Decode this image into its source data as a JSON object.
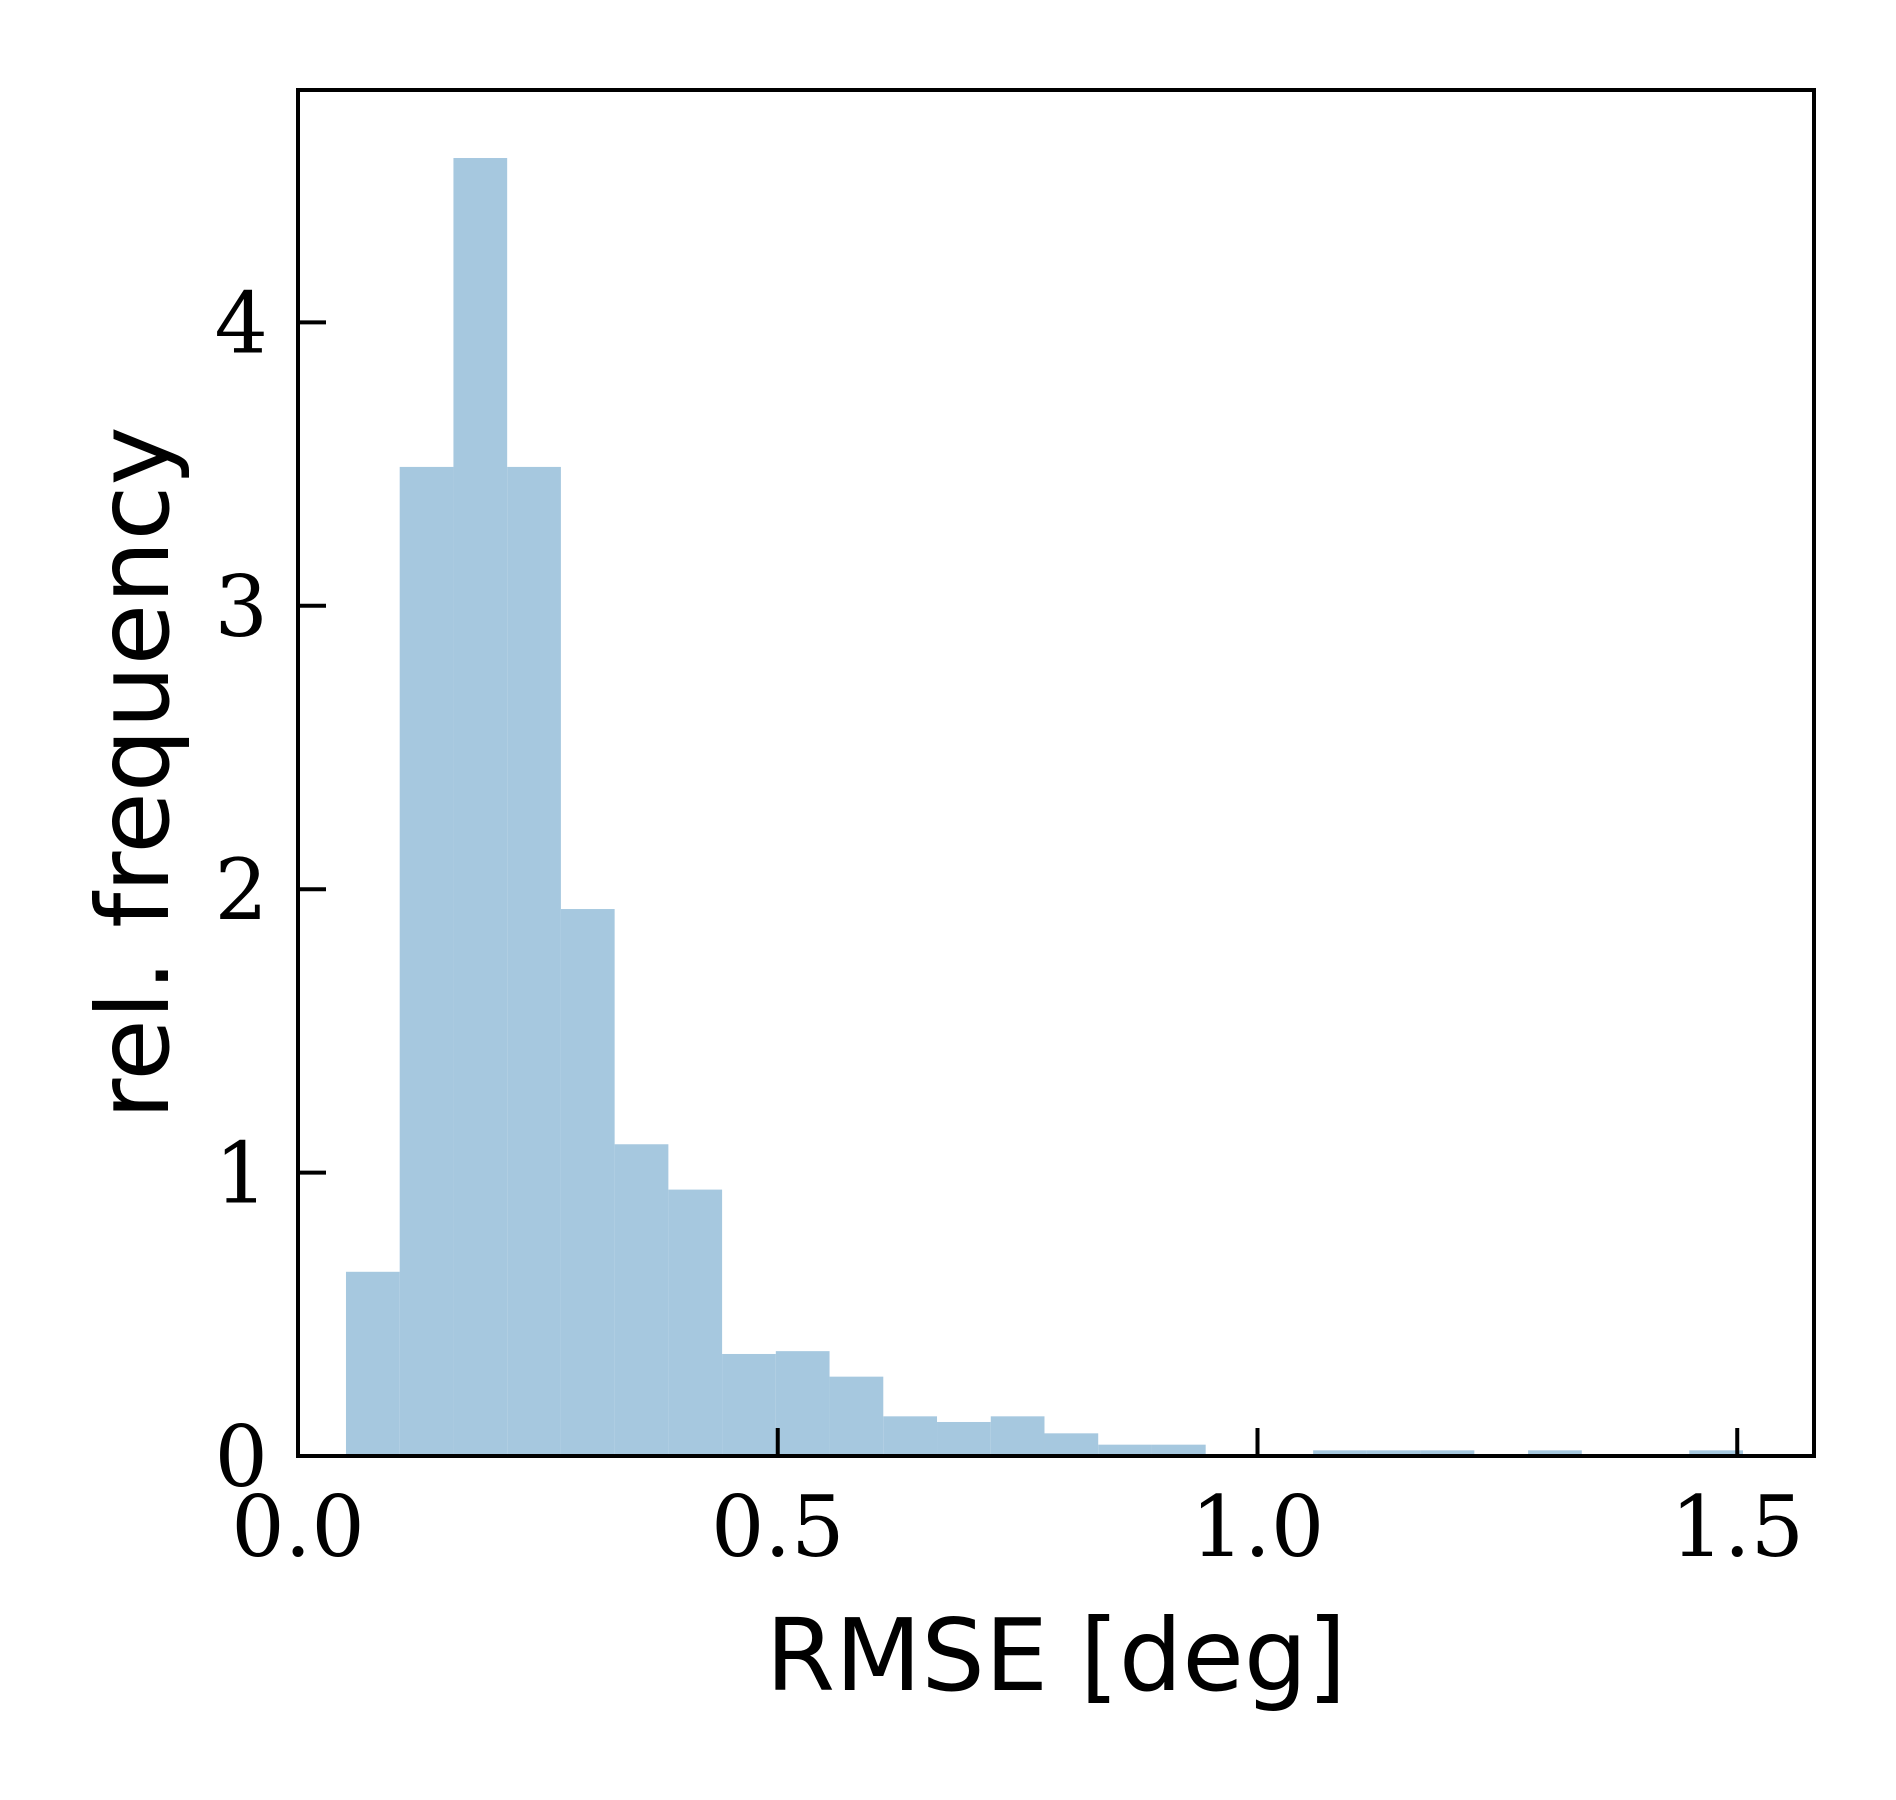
{
  "chart_data": {
    "type": "bar",
    "histogram": true,
    "title": "",
    "xlabel": "RMSE [deg]",
    "ylabel": "rel. frequency",
    "xlim": [
      0.0,
      1.58
    ],
    "ylim": [
      0,
      4.82
    ],
    "xticks": [
      0.0,
      0.5,
      1.0,
      1.5
    ],
    "xtick_labels": [
      "0.0",
      "0.5",
      "1.0",
      "1.5"
    ],
    "yticks": [
      0,
      1,
      2,
      3,
      4
    ],
    "ytick_labels": [
      "0",
      "1",
      "2",
      "3",
      "4"
    ],
    "grid": false,
    "bar_color": "#a6c8df",
    "bins": [
      {
        "x0": 0.05,
        "x1": 0.106,
        "value": 0.65
      },
      {
        "x0": 0.106,
        "x1": 0.162,
        "value": 3.49
      },
      {
        "x0": 0.162,
        "x1": 0.218,
        "value": 4.58
      },
      {
        "x0": 0.218,
        "x1": 0.274,
        "value": 3.49
      },
      {
        "x0": 0.274,
        "x1": 0.33,
        "value": 1.93
      },
      {
        "x0": 0.33,
        "x1": 0.386,
        "value": 1.1
      },
      {
        "x0": 0.386,
        "x1": 0.442,
        "value": 0.94
      },
      {
        "x0": 0.442,
        "x1": 0.498,
        "value": 0.36
      },
      {
        "x0": 0.498,
        "x1": 0.554,
        "value": 0.37
      },
      {
        "x0": 0.554,
        "x1": 0.61,
        "value": 0.28
      },
      {
        "x0": 0.61,
        "x1": 0.666,
        "value": 0.14
      },
      {
        "x0": 0.666,
        "x1": 0.722,
        "value": 0.12
      },
      {
        "x0": 0.722,
        "x1": 0.778,
        "value": 0.14
      },
      {
        "x0": 0.778,
        "x1": 0.834,
        "value": 0.08
      },
      {
        "x0": 0.834,
        "x1": 0.89,
        "value": 0.04
      },
      {
        "x0": 0.89,
        "x1": 0.946,
        "value": 0.04
      },
      {
        "x0": 1.058,
        "x1": 1.114,
        "value": 0.02
      },
      {
        "x0": 1.114,
        "x1": 1.17,
        "value": 0.02
      },
      {
        "x0": 1.17,
        "x1": 1.226,
        "value": 0.02
      },
      {
        "x0": 1.282,
        "x1": 1.338,
        "value": 0.02
      },
      {
        "x0": 1.45,
        "x1": 1.506,
        "value": 0.02
      }
    ]
  }
}
